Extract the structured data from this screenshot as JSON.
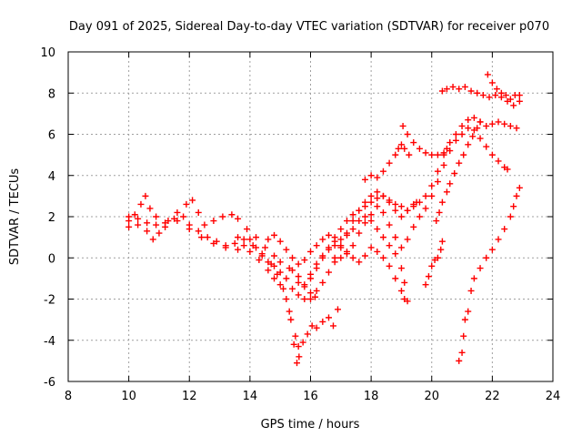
{
  "chart_data": {
    "type": "scatter",
    "title": "Day 091 of 2025, Sidereal Day-to-day VTEC variation (SDTVAR) for receiver p070",
    "xlabel": "GPS time / hours",
    "ylabel": "SDTVAR / TECUs",
    "xlim": [
      8,
      24
    ],
    "ylim": [
      -6,
      10
    ],
    "xticks": [
      "8",
      "10",
      "12",
      "14",
      "16",
      "18",
      "20",
      "22",
      "24"
    ],
    "yticks": [
      "-6",
      "-4",
      "-2",
      "0",
      "2",
      "4",
      "6",
      "8",
      "10"
    ],
    "grid": true,
    "marker": "plus",
    "color": "#ff0000",
    "series": [
      {
        "points": [
          [
            10.0,
            1.8
          ],
          [
            10.2,
            2.1
          ],
          [
            10.4,
            2.6
          ],
          [
            10.55,
            3.0
          ],
          [
            10.7,
            2.4
          ],
          [
            10.9,
            2.0
          ],
          [
            11.2,
            1.7
          ],
          [
            11.5,
            1.9
          ],
          [
            11.8,
            2.0
          ],
          [
            12.0,
            1.6
          ],
          [
            12.3,
            1.3
          ],
          [
            12.6,
            1.0
          ],
          [
            12.9,
            0.8
          ],
          [
            13.2,
            0.6
          ],
          [
            13.5,
            0.7
          ],
          [
            13.8,
            0.9
          ],
          [
            14.1,
            0.6
          ],
          [
            14.4,
            0.2
          ],
          [
            14.7,
            -0.3
          ],
          [
            14.9,
            -0.8
          ],
          [
            15.1,
            -1.5
          ],
          [
            15.3,
            -2.6
          ],
          [
            15.5,
            -3.8
          ],
          [
            15.6,
            -4.3
          ],
          [
            15.75,
            -4.1
          ],
          [
            15.9,
            -3.7
          ],
          [
            16.05,
            -3.3
          ],
          [
            16.2,
            -3.4
          ],
          [
            16.4,
            -3.1
          ],
          [
            16.6,
            -2.9
          ],
          [
            16.75,
            -3.3
          ],
          [
            16.9,
            -2.5
          ]
        ]
      },
      {
        "points": [
          [
            10.0,
            1.5
          ],
          [
            10.3,
            1.9
          ],
          [
            10.6,
            1.7
          ],
          [
            10.9,
            1.6
          ],
          [
            11.2,
            1.5
          ],
          [
            11.6,
            1.8
          ],
          [
            12.0,
            1.4
          ],
          [
            12.4,
            1.0
          ],
          [
            12.8,
            0.7
          ],
          [
            13.2,
            0.5
          ],
          [
            13.6,
            0.4
          ],
          [
            14.0,
            0.3
          ],
          [
            14.3,
            -0.1
          ],
          [
            14.6,
            -0.6
          ],
          [
            14.8,
            -1.0
          ],
          [
            15.0,
            -1.3
          ],
          [
            15.2,
            -2.0
          ],
          [
            15.35,
            -3.0
          ],
          [
            15.45,
            -4.2
          ],
          [
            15.55,
            -5.1
          ],
          [
            15.62,
            -4.8
          ]
        ]
      },
      {
        "points": [
          [
            10.0,
            2.0
          ],
          [
            10.3,
            1.6
          ],
          [
            10.6,
            1.3
          ],
          [
            10.8,
            0.9
          ],
          [
            11.0,
            1.2
          ],
          [
            11.3,
            1.8
          ],
          [
            11.6,
            2.2
          ],
          [
            11.9,
            2.6
          ],
          [
            12.1,
            2.8
          ],
          [
            12.3,
            2.2
          ],
          [
            12.5,
            1.6
          ],
          [
            12.8,
            1.8
          ],
          [
            13.1,
            2.0
          ],
          [
            13.4,
            2.1
          ],
          [
            13.6,
            1.9
          ],
          [
            13.9,
            1.4
          ],
          [
            14.2,
            1.0
          ],
          [
            14.5,
            0.5
          ],
          [
            14.8,
            0.1
          ],
          [
            15.0,
            -0.2
          ],
          [
            15.3,
            -0.5
          ],
          [
            15.6,
            -0.9
          ],
          [
            15.8,
            -1.3
          ],
          [
            16.0,
            -1.7
          ],
          [
            16.2,
            -1.6
          ],
          [
            16.4,
            -1.2
          ],
          [
            16.6,
            -0.7
          ],
          [
            16.8,
            0.0
          ],
          [
            17.0,
            0.6
          ],
          [
            17.2,
            1.2
          ],
          [
            17.4,
            1.8
          ],
          [
            17.6,
            2.3
          ],
          [
            17.8,
            2.7
          ],
          [
            18.0,
            3.0
          ],
          [
            18.2,
            3.2
          ],
          [
            18.4,
            3.0
          ],
          [
            18.6,
            2.7
          ],
          [
            18.8,
            2.3
          ],
          [
            19.0,
            2.0
          ],
          [
            19.2,
            2.3
          ],
          [
            19.4,
            2.5
          ],
          [
            19.6,
            2.7
          ],
          [
            19.8,
            3.0
          ],
          [
            20.0,
            3.5
          ],
          [
            20.2,
            4.2
          ],
          [
            20.4,
            5.0
          ],
          [
            20.6,
            5.6
          ],
          [
            20.8,
            6.0
          ],
          [
            21.0,
            6.4
          ],
          [
            21.2,
            6.7
          ],
          [
            21.4,
            6.8
          ],
          [
            21.6,
            6.6
          ],
          [
            21.8,
            6.4
          ],
          [
            22.0,
            6.5
          ],
          [
            22.2,
            6.6
          ],
          [
            22.4,
            6.5
          ],
          [
            22.6,
            6.4
          ],
          [
            22.8,
            6.3
          ]
        ]
      },
      {
        "points": [
          [
            13.6,
            1.0
          ],
          [
            13.8,
            0.6
          ],
          [
            14.0,
            0.9
          ],
          [
            14.2,
            0.5
          ],
          [
            14.4,
            0.1
          ],
          [
            14.6,
            -0.2
          ],
          [
            14.8,
            -0.4
          ],
          [
            15.0,
            -0.7
          ],
          [
            15.2,
            -1.0
          ],
          [
            15.4,
            -1.5
          ],
          [
            15.6,
            -1.8
          ],
          [
            15.8,
            -2.0
          ],
          [
            16.0,
            -2.0
          ],
          [
            16.15,
            -1.9
          ]
        ]
      },
      {
        "points": [
          [
            14.6,
            0.9
          ],
          [
            14.8,
            1.1
          ],
          [
            15.0,
            0.8
          ],
          [
            15.2,
            0.4
          ],
          [
            15.4,
            0.0
          ],
          [
            15.6,
            -0.3
          ],
          [
            15.8,
            -0.1
          ],
          [
            16.0,
            0.3
          ],
          [
            16.2,
            0.6
          ],
          [
            16.4,
            0.9
          ],
          [
            16.6,
            1.1
          ],
          [
            16.8,
            0.8
          ],
          [
            17.0,
            0.5
          ],
          [
            17.2,
            0.3
          ],
          [
            17.4,
            0.6
          ],
          [
            17.6,
            1.2
          ],
          [
            17.8,
            1.7
          ],
          [
            18.0,
            2.1
          ],
          [
            18.2,
            2.5
          ],
          [
            18.4,
            2.2
          ],
          [
            18.6,
            1.6
          ],
          [
            18.8,
            1.0
          ],
          [
            19.0,
            0.5
          ],
          [
            19.2,
            0.9
          ],
          [
            19.4,
            1.5
          ],
          [
            19.6,
            2.0
          ],
          [
            19.8,
            2.4
          ],
          [
            20.0,
            3.0
          ],
          [
            20.2,
            3.7
          ],
          [
            20.4,
            4.5
          ],
          [
            20.6,
            5.2
          ],
          [
            20.8,
            5.7
          ],
          [
            21.0,
            6.0
          ],
          [
            21.2,
            6.3
          ],
          [
            21.4,
            6.2
          ],
          [
            21.6,
            5.8
          ],
          [
            21.8,
            5.4
          ],
          [
            22.0,
            5.0
          ],
          [
            22.2,
            4.7
          ],
          [
            22.4,
            4.4
          ],
          [
            22.5,
            4.3
          ]
        ]
      },
      {
        "points": [
          [
            15.4,
            -0.6
          ],
          [
            15.6,
            -1.2
          ],
          [
            15.8,
            -1.4
          ],
          [
            16.0,
            -1.0
          ],
          [
            16.2,
            -0.5
          ],
          [
            16.4,
            0.0
          ],
          [
            16.6,
            0.4
          ],
          [
            16.8,
            0.6
          ],
          [
            17.0,
            0.9
          ],
          [
            17.2,
            1.1
          ],
          [
            17.4,
            1.4
          ],
          [
            17.6,
            1.8
          ],
          [
            17.8,
            2.0
          ],
          [
            18.0,
            1.8
          ],
          [
            18.2,
            1.4
          ],
          [
            18.4,
            1.0
          ],
          [
            18.6,
            0.6
          ],
          [
            18.8,
            0.2
          ],
          [
            19.0,
            -0.5
          ],
          [
            19.1,
            -1.2
          ],
          [
            19.2,
            -2.1
          ]
        ]
      },
      {
        "points": [
          [
            16.0,
            -0.8
          ],
          [
            16.2,
            -0.3
          ],
          [
            16.4,
            0.1
          ],
          [
            16.6,
            0.5
          ],
          [
            16.8,
            1.0
          ],
          [
            17.0,
            1.4
          ],
          [
            17.2,
            1.8
          ],
          [
            17.4,
            2.1
          ],
          [
            17.6,
            2.3
          ],
          [
            17.8,
            2.5
          ],
          [
            18.0,
            2.7
          ],
          [
            18.2,
            2.9
          ],
          [
            18.4,
            3.0
          ],
          [
            18.6,
            2.8
          ],
          [
            18.8,
            2.6
          ],
          [
            19.0,
            2.5
          ],
          [
            19.2,
            2.3
          ],
          [
            19.4,
            2.6
          ],
          [
            19.5,
            2.7
          ]
        ]
      },
      {
        "points": [
          [
            16.8,
            -0.2
          ],
          [
            17.0,
            0.0
          ],
          [
            17.2,
            0.2
          ],
          [
            17.4,
            0.0
          ],
          [
            17.6,
            -0.2
          ],
          [
            17.8,
            0.1
          ],
          [
            18.0,
            0.5
          ],
          [
            18.2,
            0.3
          ],
          [
            18.4,
            0.0
          ],
          [
            18.6,
            -0.4
          ],
          [
            18.8,
            -1.0
          ],
          [
            19.0,
            -1.6
          ],
          [
            19.1,
            -2.0
          ]
        ]
      },
      {
        "points": [
          [
            17.8,
            3.8
          ],
          [
            18.0,
            4.0
          ],
          [
            18.2,
            3.9
          ],
          [
            18.4,
            4.2
          ],
          [
            18.6,
            4.6
          ],
          [
            18.8,
            5.0
          ],
          [
            18.9,
            5.3
          ],
          [
            19.0,
            5.5
          ],
          [
            19.1,
            5.3
          ],
          [
            19.25,
            5.0
          ]
        ]
      },
      {
        "points": [
          [
            19.05,
            6.4
          ],
          [
            19.2,
            6.0
          ],
          [
            19.4,
            5.6
          ],
          [
            19.6,
            5.3
          ],
          [
            19.8,
            5.1
          ],
          [
            20.0,
            5.0
          ],
          [
            20.2,
            5.0
          ],
          [
            20.4,
            5.1
          ],
          [
            20.5,
            5.3
          ]
        ]
      },
      {
        "points": [
          [
            19.8,
            -1.3
          ],
          [
            19.9,
            -0.9
          ],
          [
            20.0,
            -0.4
          ],
          [
            20.1,
            -0.1
          ],
          [
            20.2,
            0.0
          ],
          [
            20.3,
            0.4
          ],
          [
            20.35,
            0.8
          ]
        ]
      },
      {
        "points": [
          [
            20.15,
            1.8
          ],
          [
            20.25,
            2.2
          ],
          [
            20.35,
            2.7
          ],
          [
            20.5,
            3.2
          ],
          [
            20.6,
            3.6
          ],
          [
            20.75,
            4.1
          ],
          [
            20.9,
            4.6
          ],
          [
            21.05,
            5.0
          ],
          [
            21.2,
            5.5
          ],
          [
            21.35,
            5.9
          ],
          [
            21.5,
            6.3
          ],
          [
            21.6,
            6.6
          ]
        ]
      },
      {
        "points": [
          [
            20.35,
            8.1
          ],
          [
            20.5,
            8.2
          ],
          [
            20.7,
            8.3
          ],
          [
            20.9,
            8.2
          ],
          [
            21.1,
            8.3
          ],
          [
            21.3,
            8.1
          ],
          [
            21.5,
            8.0
          ],
          [
            21.7,
            7.9
          ],
          [
            21.9,
            7.8
          ],
          [
            22.1,
            7.9
          ],
          [
            22.3,
            7.8
          ],
          [
            22.5,
            7.6
          ],
          [
            22.7,
            7.4
          ],
          [
            22.9,
            7.6
          ]
        ]
      },
      {
        "points": [
          [
            21.85,
            8.9
          ],
          [
            22.0,
            8.5
          ],
          [
            22.15,
            8.2
          ],
          [
            22.3,
            8.0
          ],
          [
            22.45,
            7.9
          ],
          [
            22.6,
            7.7
          ],
          [
            22.75,
            7.9
          ],
          [
            22.9,
            7.9
          ]
        ]
      },
      {
        "points": [
          [
            20.9,
            -5.0
          ],
          [
            21.0,
            -4.6
          ],
          [
            21.05,
            -3.8
          ],
          [
            21.1,
            -3.0
          ],
          [
            21.2,
            -2.6
          ],
          [
            21.3,
            -1.6
          ],
          [
            21.4,
            -1.0
          ],
          [
            21.6,
            -0.5
          ],
          [
            21.8,
            0.0
          ],
          [
            22.0,
            0.4
          ],
          [
            22.2,
            0.9
          ],
          [
            22.4,
            1.4
          ],
          [
            22.6,
            2.0
          ],
          [
            22.7,
            2.5
          ],
          [
            22.8,
            3.0
          ],
          [
            22.9,
            3.4
          ]
        ]
      }
    ]
  }
}
